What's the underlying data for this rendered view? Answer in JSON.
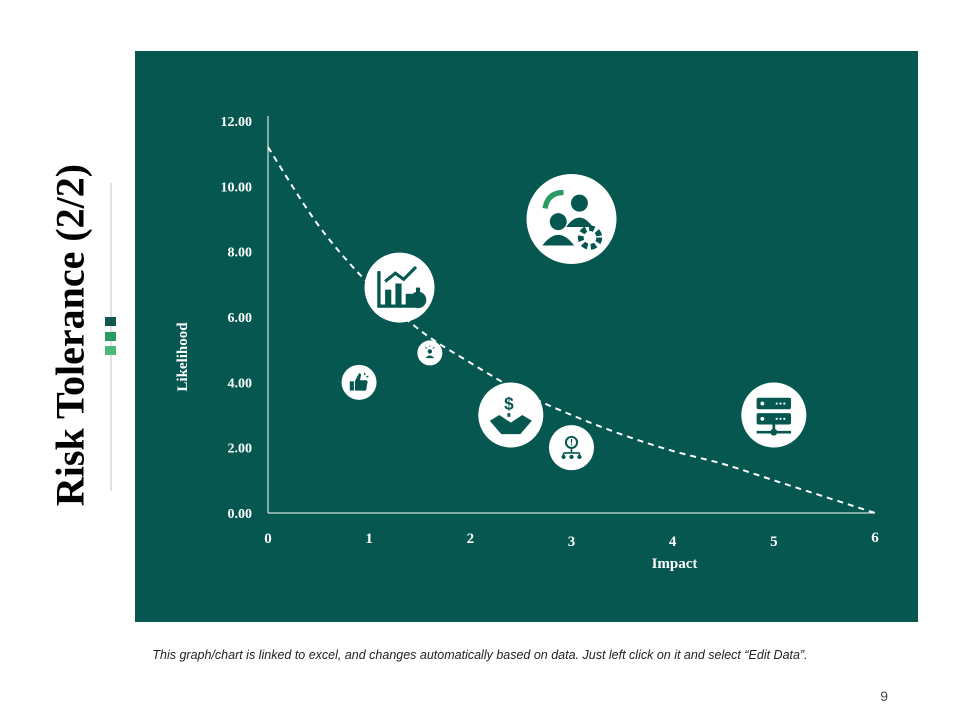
{
  "slide": {
    "title": "Risk Tolerance (2/2)",
    "footer_note": "This graph/chart is linked to excel, and changes automatically based on data. Just left click on it and select “Edit Data”.",
    "page_number": "9",
    "colors": {
      "panel": "#065750",
      "accent_dark": "#12574f",
      "accent_mid": "#2c9a63",
      "accent_light": "#4bb878"
    }
  },
  "chart_data": {
    "type": "scatter",
    "xlabel": "Impact",
    "ylabel": "Likelihood",
    "xlim": [
      0,
      6
    ],
    "ylim": [
      0,
      12
    ],
    "x_ticks": [
      "0",
      "1",
      "2",
      "3",
      "4",
      "5",
      "6"
    ],
    "y_ticks": [
      "0.00",
      "2.00",
      "4.00",
      "6.00",
      "8.00",
      "10.00",
      "12.00"
    ],
    "curve": {
      "style": "dashed",
      "points": [
        [
          0,
          11.2
        ],
        [
          0.5,
          8.8
        ],
        [
          1,
          7.0
        ],
        [
          1.5,
          5.6
        ],
        [
          2,
          4.6
        ],
        [
          2.5,
          3.7
        ],
        [
          3,
          3.0
        ],
        [
          3.5,
          2.4
        ],
        [
          4,
          1.9
        ],
        [
          4.5,
          1.5
        ],
        [
          5,
          1.0
        ],
        [
          5.5,
          0.5
        ],
        [
          6,
          0
        ]
      ]
    },
    "bubbles": [
      {
        "name": "growth-chart",
        "x": 1.3,
        "y": 6.9,
        "size": 7,
        "icon": "chart-growth-icon"
      },
      {
        "name": "team-settings",
        "x": 3.0,
        "y": 9.0,
        "size": 9,
        "icon": "team-settings-icon"
      },
      {
        "name": "idea-person",
        "x": 1.6,
        "y": 4.9,
        "size": 2.5,
        "icon": "idea-person-icon"
      },
      {
        "name": "thumbs-up",
        "x": 0.9,
        "y": 4.0,
        "size": 3.5,
        "icon": "thumbs-up-icon"
      },
      {
        "name": "handshake",
        "x": 2.4,
        "y": 3.0,
        "size": 6.5,
        "icon": "handshake-dollar-icon"
      },
      {
        "name": "risk-alert",
        "x": 3.0,
        "y": 2.0,
        "size": 4.5,
        "icon": "alert-network-icon"
      },
      {
        "name": "server",
        "x": 5.0,
        "y": 3.0,
        "size": 6.5,
        "icon": "server-icon"
      }
    ]
  }
}
